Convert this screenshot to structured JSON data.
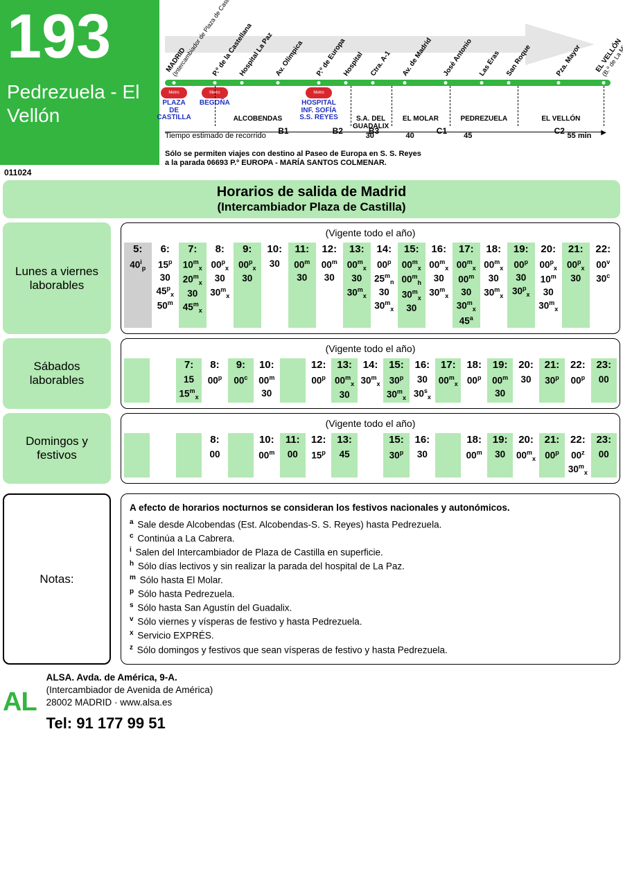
{
  "colors": {
    "primary": "#33b540",
    "light": "#b4e8b4",
    "grey": "#cfcfcf",
    "metro_blue": "#2030c0",
    "metro_red": "#d8272d"
  },
  "route": {
    "number": "193",
    "name": "Pedrezuela - El Vellón",
    "code": "011024"
  },
  "diagram": {
    "stops": [
      {
        "pct": 2,
        "label": "MADRID",
        "sub": "(Intercambiador de Plaza de Castilla)"
      },
      {
        "pct": 11,
        "label": "P.º de la Castellana"
      },
      {
        "pct": 17,
        "label": "Hospital La Paz"
      },
      {
        "pct": 25,
        "label": "Av. Olímpica"
      },
      {
        "pct": 34,
        "label": "P.º de Europa"
      },
      {
        "pct": 40,
        "label": "Hospital"
      },
      {
        "pct": 46,
        "label": "Ctra. A-1"
      },
      {
        "pct": 53,
        "label": "Av. de Madrid"
      },
      {
        "pct": 62,
        "label": "José Antonio"
      },
      {
        "pct": 70,
        "label": "Las Eras"
      },
      {
        "pct": 76,
        "label": "San Roque"
      },
      {
        "pct": 87,
        "label": "Pza. Mayor"
      },
      {
        "pct": 97,
        "label": "EL VELLÓN",
        "sub": "(B.º de La Mina)"
      }
    ],
    "metro": [
      {
        "pct": 2,
        "labels": [
          "PLAZA",
          "DE",
          "CASTILLA"
        ]
      },
      {
        "pct": 11,
        "labels": [
          "BEGOÑA"
        ]
      },
      {
        "pct": 34,
        "labels": [
          "HOSPITAL",
          "INF. SOFÍA",
          "S.S. REYES"
        ]
      }
    ],
    "areas": [
      {
        "from": 11,
        "to": 30,
        "name": "ALCOBENDAS"
      },
      {
        "from": 41,
        "to": 50,
        "name": "S.A. DEL GUADALIX"
      },
      {
        "from": 50,
        "to": 63,
        "name": "EL MOLAR"
      },
      {
        "from": 63,
        "to": 78,
        "name": "PEDREZUELA"
      },
      {
        "from": 78,
        "to": 97,
        "name": "EL VELLÓN"
      }
    ],
    "zones": [
      {
        "pct": 25,
        "label": "B1"
      },
      {
        "pct": 37,
        "label": "B2"
      },
      {
        "pct": 45,
        "label": "B3"
      },
      {
        "pct": 60,
        "label": "C1"
      },
      {
        "pct": 86,
        "label": "C2"
      }
    ],
    "tiempo_label": "Tiempo estimado de recorrido",
    "tiempo_vals": [
      {
        "pct": 46,
        "v": "30"
      },
      {
        "pct": 55,
        "v": "40"
      },
      {
        "pct": 68,
        "v": "45"
      },
      {
        "pct": 93,
        "v": "55 min"
      }
    ],
    "note": "Sólo se permiten viajes con destino al Paseo de Europa en S. S. Reyes\na la parada 06693 P.º EUROPA - MARÍA SANTOS COLMENAR."
  },
  "horarios_title_1": "Horarios de salida de Madrid",
  "horarios_title_2": "(Intercambiador Plaza de Castilla)",
  "vigente": "(Vigente todo el año)",
  "schedules": {
    "weekday": {
      "label": "Lunes a viernes laborables",
      "hours": [
        "5",
        "6",
        "7",
        "8",
        "9",
        "10",
        "11",
        "12",
        "13",
        "14",
        "15",
        "16",
        "17",
        "18",
        "19",
        "20",
        "21",
        "22"
      ],
      "grey_first": true,
      "cols": [
        [
          {
            "m": "40",
            "s": "i",
            "b": "p"
          }
        ],
        [
          {
            "m": "15",
            "s": "p"
          },
          {
            "m": "30"
          },
          {
            "m": "45",
            "s": "p",
            "b": "x"
          },
          {
            "m": "50",
            "s": "m"
          }
        ],
        [
          {
            "m": "10",
            "s": "m",
            "b": "x"
          },
          {
            "m": "20",
            "s": "m",
            "b": "x"
          },
          {
            "m": "30"
          },
          {
            "m": "45",
            "s": "m",
            "b": "x"
          }
        ],
        [
          {
            "m": "00",
            "s": "p",
            "b": "x"
          },
          {
            "m": "30"
          },
          {
            "m": "30",
            "s": "m",
            "b": "x"
          }
        ],
        [
          {
            "m": "00",
            "s": "p",
            "b": "x"
          },
          {
            "m": "30"
          }
        ],
        [
          {
            "m": "30"
          }
        ],
        [
          {
            "m": "00",
            "s": "m"
          },
          {
            "m": "30"
          }
        ],
        [
          {
            "m": "00",
            "s": "m"
          },
          {
            "m": "30"
          }
        ],
        [
          {
            "m": "00",
            "s": "m",
            "b": "x"
          },
          {
            "m": "30"
          },
          {
            "m": "30",
            "s": "m",
            "b": "x"
          }
        ],
        [
          {
            "m": "00",
            "s": "p"
          },
          {
            "m": "25",
            "s": "m",
            "b": "n"
          },
          {
            "m": "30"
          },
          {
            "m": "30",
            "s": "m",
            "b": "x"
          }
        ],
        [
          {
            "m": "00",
            "s": "m",
            "b": "x"
          },
          {
            "m": "00",
            "s": "m",
            "b": "h"
          },
          {
            "m": "30",
            "s": "m",
            "b": "x"
          },
          {
            "m": "30"
          }
        ],
        [
          {
            "m": "00",
            "s": "m",
            "b": "x"
          },
          {
            "m": "30"
          },
          {
            "m": "30",
            "s": "m",
            "b": "x"
          }
        ],
        [
          {
            "m": "00",
            "s": "m",
            "b": "x"
          },
          {
            "m": "00",
            "s": "m"
          },
          {
            "m": "30"
          },
          {
            "m": "30",
            "s": "m",
            "b": "x"
          },
          {
            "m": "45",
            "s": "a"
          }
        ],
        [
          {
            "m": "00",
            "s": "m",
            "b": "x"
          },
          {
            "m": "30"
          },
          {
            "m": "30",
            "s": "m",
            "b": "x"
          }
        ],
        [
          {
            "m": "00",
            "s": "p"
          },
          {
            "m": "30"
          },
          {
            "m": "30",
            "s": "p",
            "b": "x"
          }
        ],
        [
          {
            "m": "00",
            "s": "p",
            "b": "x"
          },
          {
            "m": "10",
            "s": "m"
          },
          {
            "m": "30"
          },
          {
            "m": "30",
            "s": "m",
            "b": "x"
          }
        ],
        [
          {
            "m": "00",
            "s": "p",
            "b": "x"
          },
          {
            "m": "30"
          }
        ],
        [
          {
            "m": "00",
            "s": "v"
          },
          {
            "m": "30",
            "s": "c"
          }
        ]
      ]
    },
    "saturday": {
      "label": "Sábados laborables",
      "hours": [
        "",
        "",
        "7",
        "8",
        "9",
        "10",
        "",
        "12",
        "13",
        "14",
        "15",
        "16",
        "17",
        "18",
        "19",
        "20",
        "21",
        "22",
        "23"
      ],
      "cols": [
        [],
        [],
        [
          {
            "m": "15"
          },
          {
            "m": "15",
            "s": "m",
            "b": "x"
          }
        ],
        [
          {
            "m": "00",
            "s": "p"
          }
        ],
        [
          {
            "m": "00",
            "s": "c"
          }
        ],
        [
          {
            "m": "00",
            "s": "m"
          },
          {
            "m": "30"
          }
        ],
        [],
        [
          {
            "m": "00",
            "s": "p"
          }
        ],
        [
          {
            "m": "00",
            "s": "m",
            "b": "x"
          },
          {
            "m": "30"
          }
        ],
        [
          {
            "m": "30",
            "s": "m",
            "b": "x"
          }
        ],
        [
          {
            "m": "30",
            "s": "p"
          },
          {
            "m": "30",
            "s": "m",
            "b": "x"
          }
        ],
        [
          {
            "m": "30"
          },
          {
            "m": "30",
            "s": "s",
            "b": "x"
          }
        ],
        [
          {
            "m": "00",
            "s": "m",
            "b": "x"
          }
        ],
        [
          {
            "m": "00",
            "s": "p"
          }
        ],
        [
          {
            "m": "00",
            "s": "m"
          },
          {
            "m": "30"
          }
        ],
        [
          {
            "m": "30"
          }
        ],
        [
          {
            "m": "30",
            "s": "p"
          }
        ],
        [
          {
            "m": "00",
            "s": "p"
          }
        ],
        [
          {
            "m": "00"
          }
        ]
      ]
    },
    "sunday": {
      "label": "Domingos y festivos",
      "hours": [
        "",
        "",
        "",
        "8",
        "",
        "10",
        "11",
        "12",
        "13",
        "",
        "15",
        "16",
        "",
        "18",
        "19",
        "20",
        "21",
        "22",
        "23"
      ],
      "cols": [
        [],
        [],
        [],
        [
          {
            "m": "00"
          }
        ],
        [],
        [
          {
            "m": "00",
            "s": "m"
          }
        ],
        [
          {
            "m": "00"
          }
        ],
        [
          {
            "m": "15",
            "s": "p"
          }
        ],
        [
          {
            "m": "45"
          }
        ],
        [],
        [
          {
            "m": "30",
            "s": "p"
          }
        ],
        [
          {
            "m": "30"
          }
        ],
        [],
        [
          {
            "m": "00",
            "s": "m"
          }
        ],
        [
          {
            "m": "30"
          }
        ],
        [
          {
            "m": "00",
            "s": "m",
            "b": "x"
          }
        ],
        [
          {
            "m": "00",
            "s": "p"
          }
        ],
        [
          {
            "m": "00",
            "s": "z"
          },
          {
            "m": "30",
            "s": "m",
            "b": "x"
          }
        ],
        [
          {
            "m": "00"
          }
        ]
      ]
    }
  },
  "notes": {
    "label": "Notas:",
    "title": "A efecto de horarios nocturnos se consideran los festivos nacionales y autonómicos.",
    "items": [
      {
        "k": "a",
        "t": "Sale desde Alcobendas (Est. Alcobendas-S. S. Reyes) hasta Pedrezuela."
      },
      {
        "k": "c",
        "t": "Continúa a La Cabrera."
      },
      {
        "k": "i",
        "t": "Salen del Intercambiador de Plaza de Castilla en superficie."
      },
      {
        "k": "h",
        "t": "Sólo días lectivos y sin realizar la parada del hospital de La Paz."
      },
      {
        "k": "m",
        "t": "Sólo hasta El Molar."
      },
      {
        "k": "p",
        "t": "Sólo hasta Pedrezuela."
      },
      {
        "k": "s",
        "t": "Sólo hasta San Agustín del Guadalix."
      },
      {
        "k": "v",
        "t": "Sólo viernes y vísperas de festivo y hasta Pedrezuela."
      },
      {
        "k": "x",
        "t": "Servicio EXPRÉS."
      },
      {
        "k": "z",
        "t": "Sólo domingos y festivos que sean vísperas de festivo y hasta Pedrezuela."
      }
    ]
  },
  "footer": {
    "al": "AL",
    "l1": "ALSA. Avda. de América, 9-A.",
    "l2": "(Intercambiador de Avenida de América)",
    "l3": "28002 MADRID · www.alsa.es",
    "tel": "Tel: 91 177 99 51"
  }
}
